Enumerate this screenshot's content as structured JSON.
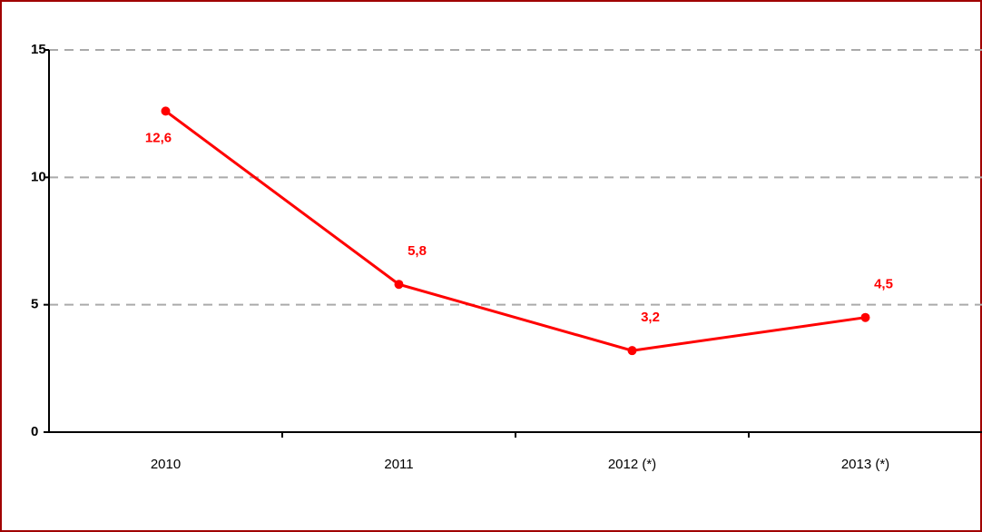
{
  "chart_data": {
    "type": "line",
    "categories": [
      "2010",
      "2011",
      "2012 (*)",
      "2013 (*)"
    ],
    "series": [
      {
        "color": "#ff0000",
        "values": [
          12.6,
          5.8,
          3.2,
          4.5
        ],
        "value_labels": [
          "12,6",
          "5,8",
          "3,2",
          "4,5"
        ]
      }
    ],
    "ylim": [
      0,
      15
    ],
    "yticks": [
      0,
      5,
      10,
      15
    ],
    "grid": true
  }
}
